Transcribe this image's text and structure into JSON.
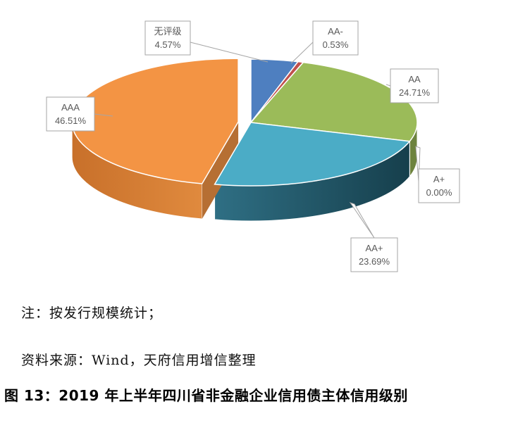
{
  "chart_data": {
    "type": "pie",
    "style": "3d-exploded",
    "categories": [
      "无评级",
      "AA-",
      "AA",
      "A+",
      "AA+",
      "AAA"
    ],
    "values": [
      4.57,
      0.53,
      24.71,
      0.0,
      23.69,
      46.51
    ],
    "value_labels": [
      "4.57%",
      "0.53%",
      "24.71%",
      "0.00%",
      "23.69%",
      "46.51%"
    ],
    "colors": [
      "#4e7fc0",
      "#c0504d",
      "#9bbb59",
      "#f0ad4e",
      "#4bacc6",
      "#f39444"
    ]
  },
  "note": "注：按发行规模统计；",
  "source": "资料来源：Wind，天府信用增信整理",
  "caption": "图 13：2019 年上半年四川省非金融企业信用债主体信用级别"
}
